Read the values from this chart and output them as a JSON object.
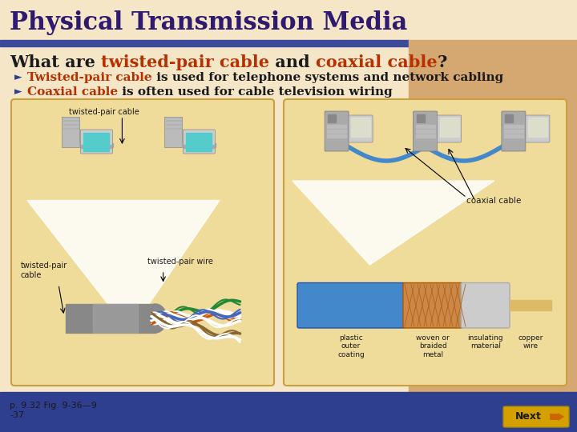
{
  "title": "Physical Transmission Media",
  "title_color": "#2E1A6E",
  "title_bg": "#F5E6C8",
  "subtitle_black1": "What are ",
  "subtitle_red1": "twisted-pair cable",
  "subtitle_black2": " and ",
  "subtitle_red2": "coaxial cable",
  "subtitle_black3": "?",
  "subtitle_color": "#1a1a1a",
  "subtitle_highlight_color": "#B83000",
  "subtitle_fontsize": 15,
  "bullet1_highlight": "Twisted-pair cable",
  "bullet1_rest": " is used for telephone systems and network cabling",
  "bullet2_highlight": "Coaxial cable",
  "bullet2_rest": " is often used for cable television wiring",
  "bullet_highlight_color": "#B83000",
  "bullet_color": "#1a1a1a",
  "bullet_fontsize": 11,
  "bg_left": "#F5E6C8",
  "bg_right": "#D4A870",
  "bg_title": "#F5E6C8",
  "bg_blue_bar": "#3B4A9A",
  "bg_bottom_blue": "#2E3F8F",
  "panel_bg": "#F0DC9A",
  "panel_border": "#C8A040",
  "footer_text": "p. 9.32 Fig. 9-36—9\n-37",
  "footer_color": "#1a1a1a",
  "footer_fontsize": 8,
  "next_btn_bg": "#D4A000",
  "next_btn_text": "Next",
  "next_btn_arrow_color": "#CC6600",
  "wire_colors": [
    "#228833",
    "#228833",
    "#FFFFFF",
    "#FFFFFF",
    "#CC5500",
    "#CC5500",
    "#FFFFFF",
    "#FFFFFF",
    "#4466BB",
    "#4466BB",
    "#FFFFFF",
    "#FFFFFF",
    "#CC7733",
    "#CC7733"
  ],
  "coax_blue": "#4488CC",
  "coax_braid": "#CC8844",
  "coax_insul": "#CCCCCC",
  "coax_copper": "#DDBB66"
}
